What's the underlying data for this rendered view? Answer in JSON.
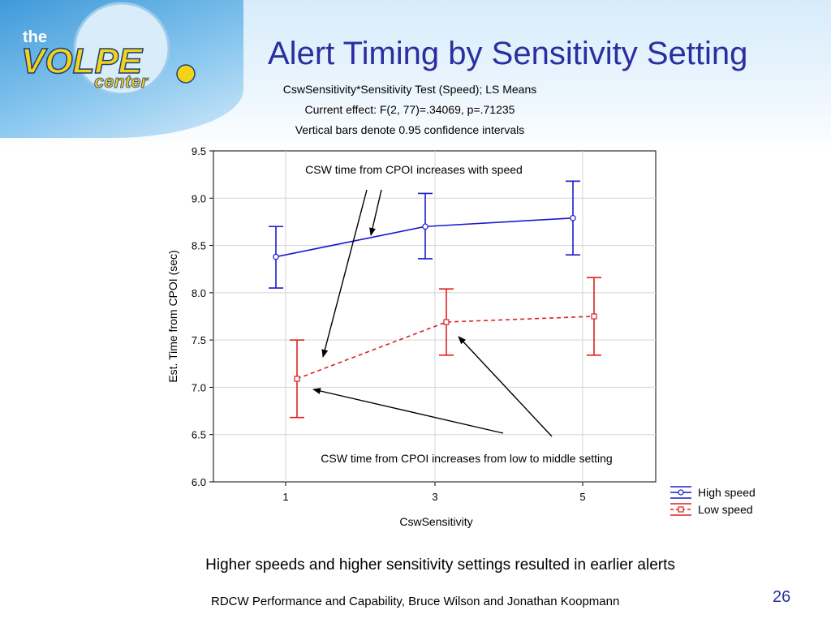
{
  "slide": {
    "title": "Alert Timing by Sensitivity Setting",
    "subtitle_lines": [
      "CswSensitivity*Sensitivity Test (Speed); LS Means",
      "Current effect: F(2, 77)=.34069, p=.71235",
      "Vertical bars denote 0.95 confidence intervals"
    ],
    "caption": "Higher speeds and higher sensitivity settings resulted in earlier alerts",
    "footer": "RDCW Performance and Capability, Bruce Wilson and Jonathan Koopmann",
    "page_number": "26",
    "logo": {
      "word_the": "the",
      "word_main": "VOLPE",
      "word_center": "center"
    }
  },
  "colors": {
    "title": "#2b2ea0",
    "high_speed": "#1a1acc",
    "low_speed": "#dd2020",
    "banner": "#3f9ad9"
  },
  "chart_data": {
    "type": "line",
    "xlabel": "CswSensitivity",
    "ylabel": "Est. Time from CPOI (sec)",
    "categories": [
      "1",
      "3",
      "5"
    ],
    "ylim": [
      6.0,
      9.5
    ],
    "yticks": [
      "6.0",
      "6.5",
      "7.0",
      "7.5",
      "8.0",
      "8.5",
      "9.0",
      "9.5"
    ],
    "grid": true,
    "legend_position": "bottom-right, outside plot",
    "series": [
      {
        "name": "High speed",
        "style": "solid",
        "values": [
          8.38,
          8.7,
          8.79
        ],
        "ci_low": [
          8.05,
          8.36,
          8.4
        ],
        "ci_high": [
          8.7,
          9.05,
          9.18
        ]
      },
      {
        "name": "Low speed",
        "style": "dashed",
        "values": [
          7.09,
          7.69,
          7.75
        ],
        "ci_low": [
          6.68,
          7.34,
          7.34
        ],
        "ci_high": [
          7.5,
          8.04,
          8.16
        ]
      }
    ],
    "annotations": [
      "CSW time from CPOI increases with speed",
      "CSW time from CPOI increases from low to middle setting"
    ]
  }
}
